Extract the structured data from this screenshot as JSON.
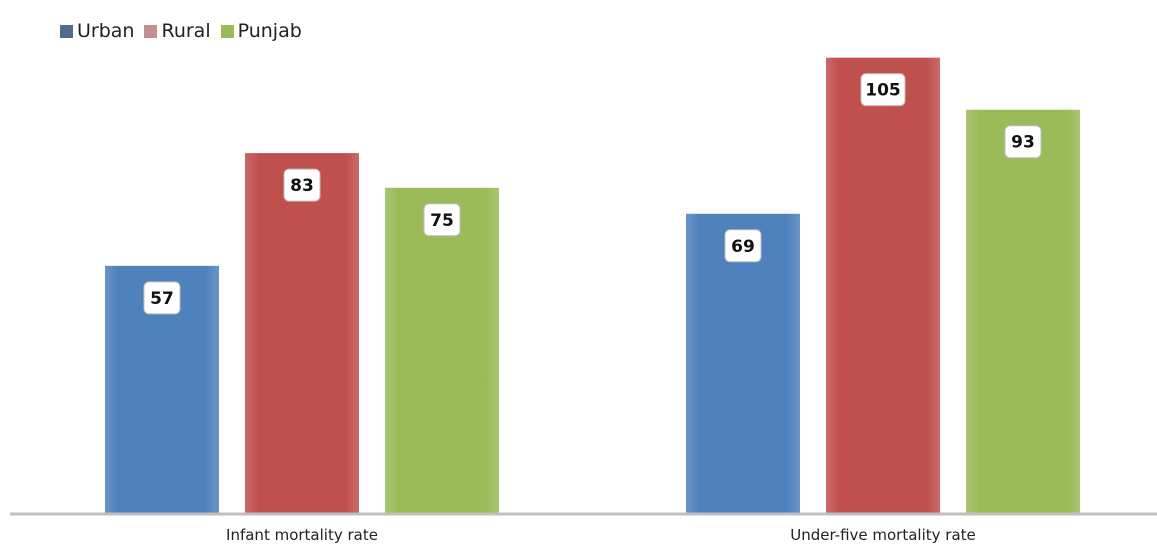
{
  "chart_data": {
    "type": "bar",
    "categories": [
      "Infant mortality rate",
      "Under-five mortality rate"
    ],
    "series": [
      {
        "name": "Urban",
        "values": [
          57,
          69
        ],
        "color": "#4f81bd",
        "legend_color": "#4f6b8f"
      },
      {
        "name": "Rural",
        "values": [
          83,
          105
        ],
        "color": "#c0504d",
        "legend_color": "#c4908f"
      },
      {
        "name": "Punjab",
        "values": [
          75,
          93
        ],
        "color": "#9bbb59",
        "legend_color": "#9bbb59"
      }
    ],
    "ylim": [
      0,
      110
    ],
    "legend_position": "top-left",
    "grid": false,
    "data_labels": true
  }
}
